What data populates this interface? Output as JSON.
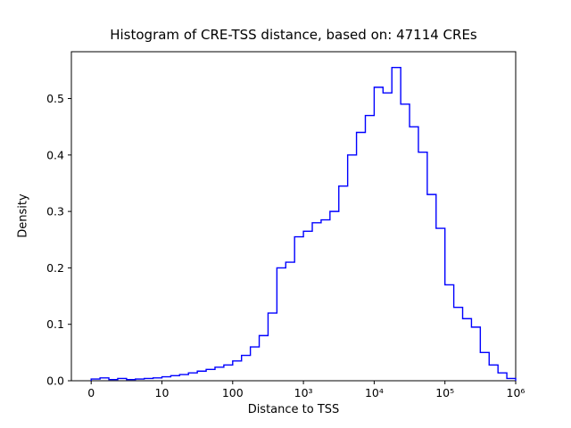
{
  "chart_data": {
    "type": "bar",
    "histtype": "step",
    "title": "Histogram of CRE-TSS distance, based on: 47114 CREs",
    "xlabel": "Distance to TSS",
    "ylabel": "Density",
    "sample_count": 47114,
    "line_color": "#0000ff",
    "grid": false,
    "legend": "none",
    "x_scale": "log10-decades (0 shown at linear origin)",
    "xlim": [
      -0.28,
      6.0
    ],
    "ylim": [
      0,
      0.583
    ],
    "x_tick_positions": [
      0,
      1,
      2,
      3,
      4,
      5,
      6
    ],
    "x_tick_labels": [
      "0",
      "10",
      "100",
      "10³",
      "10⁴",
      "10⁵",
      "10⁶"
    ],
    "y_tick_values": [
      0.0,
      0.1,
      0.2,
      0.3,
      0.4,
      0.5
    ],
    "y_tick_labels": [
      "0.0",
      "0.1",
      "0.2",
      "0.3",
      "0.4",
      "0.5"
    ],
    "bins": {
      "start": 0,
      "width": 0.125,
      "unit": "log10(distance)",
      "densities": [
        0.003,
        0.005,
        0.002,
        0.004,
        0.002,
        0.003,
        0.004,
        0.005,
        0.007,
        0.009,
        0.011,
        0.014,
        0.017,
        0.02,
        0.024,
        0.028,
        0.035,
        0.045,
        0.06,
        0.08,
        0.12,
        0.2,
        0.21,
        0.255,
        0.265,
        0.28,
        0.285,
        0.3,
        0.345,
        0.4,
        0.44,
        0.47,
        0.52,
        0.51,
        0.555,
        0.49,
        0.45,
        0.405,
        0.33,
        0.27,
        0.17,
        0.13,
        0.11,
        0.095,
        0.05,
        0.028,
        0.014,
        0.004
      ]
    }
  }
}
